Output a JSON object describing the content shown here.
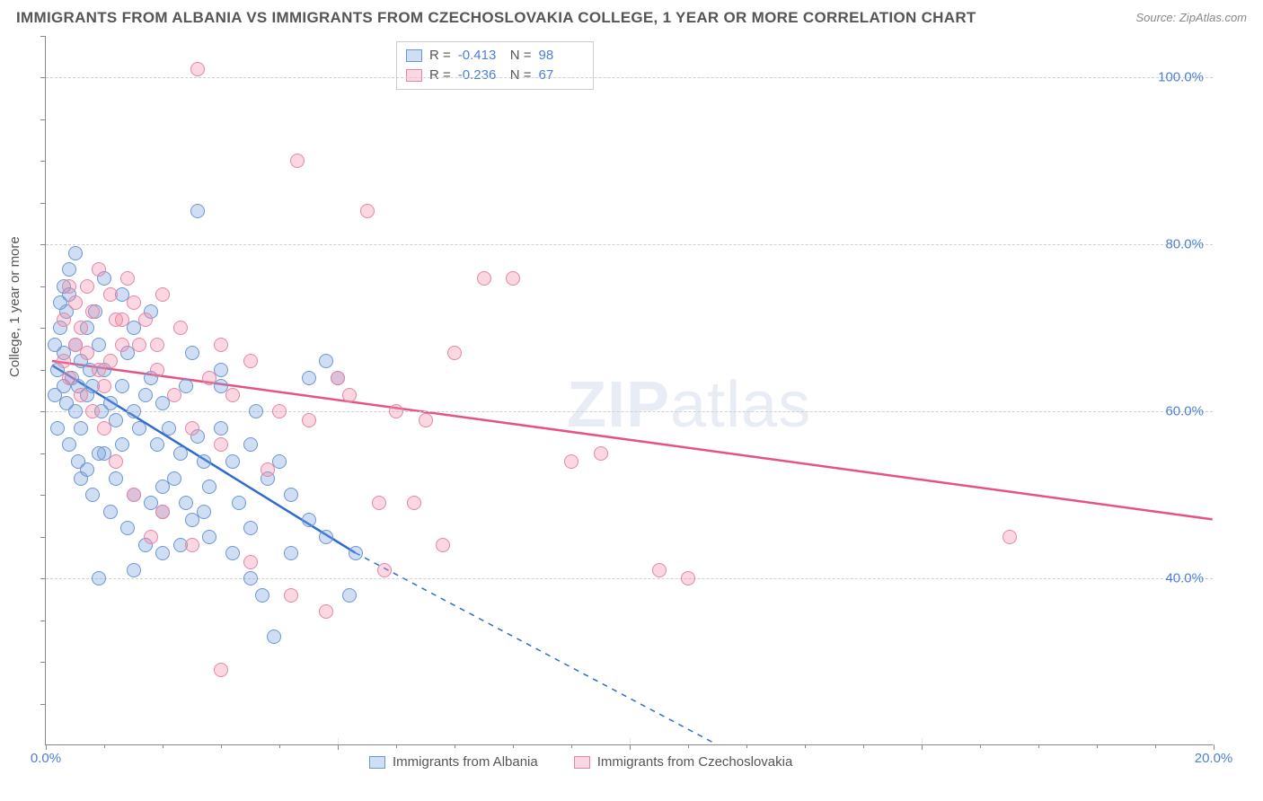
{
  "chart": {
    "type": "scatter",
    "title": "IMMIGRANTS FROM ALBANIA VS IMMIGRANTS FROM CZECHOSLOVAKIA COLLEGE, 1 YEAR OR MORE CORRELATION CHART",
    "source": "Source: ZipAtlas.com",
    "ylabel": "College, 1 year or more",
    "watermark": "ZIPatlas",
    "xlim": [
      0,
      20
    ],
    "ylim": [
      20,
      105
    ],
    "x_ticks": [
      0,
      5,
      10,
      15,
      20
    ],
    "x_tick_labels": [
      "0.0%",
      "",
      "",
      "",
      "20.0%"
    ],
    "y_ticks": [
      40,
      60,
      80,
      100
    ],
    "y_tick_labels": [
      "40.0%",
      "60.0%",
      "80.0%",
      "100.0%"
    ],
    "minor_y_ticks": [
      25,
      30,
      35,
      45,
      50,
      55,
      65,
      70,
      75,
      85,
      90,
      95,
      105
    ],
    "background_color": "#ffffff",
    "grid_color": "#d0d0d0",
    "axis_color": "#888888",
    "label_color": "#555555",
    "tick_label_color": "#4a7fd8",
    "title_fontsize": 17,
    "label_fontsize": 15,
    "tick_fontsize": 15,
    "marker_radius": 8,
    "line_width": 2.5
  },
  "series": [
    {
      "name": "Immigrants from Albania",
      "R": "-0.413",
      "N": "98",
      "fill_color": "rgba(120,160,220,0.35)",
      "stroke_color": "#6a96d6",
      "line_color": "#2d6bd0",
      "trend_solid": {
        "x1": 0.1,
        "y1": 65.5,
        "x2": 5.3,
        "y2": 43
      },
      "trend_dashed": {
        "x1": 5.3,
        "y1": 43,
        "x2": 11.5,
        "y2": 20
      },
      "points": [
        [
          0.2,
          65
        ],
        [
          0.3,
          63
        ],
        [
          0.3,
          67
        ],
        [
          0.25,
          70
        ],
        [
          0.35,
          72
        ],
        [
          0.4,
          74
        ],
        [
          0.15,
          62
        ],
        [
          0.5,
          68
        ],
        [
          0.45,
          64
        ],
        [
          0.6,
          66
        ],
        [
          0.5,
          60
        ],
        [
          0.7,
          62
        ],
        [
          0.6,
          58
        ],
        [
          0.8,
          63
        ],
        [
          0.7,
          70
        ],
        [
          0.9,
          68
        ],
        [
          0.85,
          72
        ],
        [
          1.0,
          65
        ],
        [
          1.1,
          61
        ],
        [
          1.2,
          59
        ],
        [
          1.0,
          55
        ],
        [
          1.3,
          63
        ],
        [
          1.4,
          67
        ],
        [
          1.5,
          60
        ],
        [
          1.3,
          56
        ],
        [
          1.6,
          58
        ],
        [
          1.7,
          62
        ],
        [
          1.8,
          64
        ],
        [
          1.5,
          70
        ],
        [
          2.0,
          61
        ],
        [
          1.9,
          56
        ],
        [
          2.1,
          58
        ],
        [
          2.2,
          52
        ],
        [
          2.3,
          55
        ],
        [
          2.4,
          63
        ],
        [
          2.0,
          48
        ],
        [
          2.6,
          57
        ],
        [
          2.7,
          54
        ],
        [
          2.5,
          47
        ],
        [
          3.0,
          58
        ],
        [
          2.8,
          51
        ],
        [
          3.2,
          54
        ],
        [
          3.3,
          49
        ],
        [
          3.5,
          56
        ],
        [
          3.6,
          60
        ],
        [
          3.0,
          63
        ],
        [
          3.8,
          52
        ],
        [
          4.0,
          54
        ],
        [
          3.5,
          46
        ],
        [
          4.2,
          50
        ],
        [
          0.3,
          75
        ],
        [
          0.4,
          77
        ],
        [
          0.25,
          73
        ],
        [
          0.5,
          79
        ],
        [
          1.0,
          76
        ],
        [
          1.3,
          74
        ],
        [
          1.8,
          72
        ],
        [
          2.6,
          84
        ],
        [
          2.5,
          67
        ],
        [
          3.0,
          65
        ],
        [
          4.5,
          64
        ],
        [
          4.8,
          66
        ],
        [
          5.0,
          64
        ],
        [
          0.6,
          52
        ],
        [
          0.8,
          50
        ],
        [
          1.1,
          48
        ],
        [
          1.4,
          46
        ],
        [
          1.7,
          44
        ],
        [
          0.9,
          40
        ],
        [
          1.5,
          41
        ],
        [
          2.0,
          43
        ],
        [
          2.3,
          44
        ],
        [
          2.8,
          45
        ],
        [
          3.2,
          43
        ],
        [
          3.5,
          40
        ],
        [
          3.7,
          38
        ],
        [
          3.9,
          33
        ],
        [
          4.2,
          43
        ],
        [
          4.5,
          47
        ],
        [
          4.8,
          45
        ],
        [
          5.2,
          38
        ],
        [
          5.3,
          43
        ],
        [
          0.2,
          58
        ],
        [
          0.4,
          56
        ],
        [
          0.55,
          54
        ],
        [
          0.7,
          53
        ],
        [
          0.9,
          55
        ],
        [
          1.2,
          52
        ],
        [
          1.5,
          50
        ],
        [
          1.8,
          49
        ],
        [
          2.0,
          51
        ],
        [
          2.4,
          49
        ],
        [
          2.7,
          48
        ],
        [
          0.15,
          68
        ],
        [
          0.35,
          61
        ],
        [
          0.55,
          63
        ],
        [
          0.75,
          65
        ],
        [
          0.95,
          60
        ]
      ]
    },
    {
      "name": "Immigrants from Czechoslovakia",
      "R": "-0.236",
      "N": "67",
      "fill_color": "rgba(240,140,170,0.35)",
      "stroke_color": "#e685a5",
      "line_color": "#e55383",
      "trend_solid": {
        "x1": 0.1,
        "y1": 66,
        "x2": 20,
        "y2": 47
      },
      "trend_dashed": null,
      "points": [
        [
          0.3,
          66
        ],
        [
          0.5,
          68
        ],
        [
          0.4,
          64
        ],
        [
          0.7,
          67
        ],
        [
          0.6,
          70
        ],
        [
          0.9,
          65
        ],
        [
          0.8,
          72
        ],
        [
          1.1,
          66
        ],
        [
          1.0,
          63
        ],
        [
          1.3,
          68
        ],
        [
          1.2,
          71
        ],
        [
          1.5,
          73
        ],
        [
          1.4,
          76
        ],
        [
          1.7,
          71
        ],
        [
          2.0,
          74
        ],
        [
          2.6,
          101
        ],
        [
          2.3,
          70
        ],
        [
          1.9,
          68
        ],
        [
          3.0,
          68
        ],
        [
          2.8,
          64
        ],
        [
          3.2,
          62
        ],
        [
          3.5,
          66
        ],
        [
          4.3,
          90
        ],
        [
          4.0,
          60
        ],
        [
          2.5,
          58
        ],
        [
          3.0,
          56
        ],
        [
          3.8,
          53
        ],
        [
          4.5,
          59
        ],
        [
          5.0,
          64
        ],
        [
          5.5,
          84
        ],
        [
          5.2,
          62
        ],
        [
          6.0,
          60
        ],
        [
          5.7,
          49
        ],
        [
          6.5,
          59
        ],
        [
          7.0,
          67
        ],
        [
          7.5,
          76
        ],
        [
          8.0,
          76
        ],
        [
          6.3,
          49
        ],
        [
          6.8,
          44
        ],
        [
          5.8,
          41
        ],
        [
          4.8,
          36
        ],
        [
          4.2,
          38
        ],
        [
          3.5,
          42
        ],
        [
          3.0,
          29
        ],
        [
          2.5,
          44
        ],
        [
          2.0,
          48
        ],
        [
          1.8,
          45
        ],
        [
          1.5,
          50
        ],
        [
          1.2,
          54
        ],
        [
          1.0,
          58
        ],
        [
          0.8,
          60
        ],
        [
          0.6,
          62
        ],
        [
          9.5,
          55
        ],
        [
          9.0,
          54
        ],
        [
          10.5,
          41
        ],
        [
          11.0,
          40
        ],
        [
          16.5,
          45
        ],
        [
          0.4,
          75
        ],
        [
          0.3,
          71
        ],
        [
          0.5,
          73
        ],
        [
          0.7,
          75
        ],
        [
          0.9,
          77
        ],
        [
          1.1,
          74
        ],
        [
          1.3,
          71
        ],
        [
          1.6,
          68
        ],
        [
          1.9,
          65
        ],
        [
          2.2,
          62
        ]
      ]
    }
  ],
  "legend_bottom": [
    {
      "label": "Immigrants from Albania",
      "fill": "rgba(120,160,220,0.35)",
      "stroke": "#6a96d6"
    },
    {
      "label": "Immigrants from Czechoslovakia",
      "fill": "rgba(240,140,170,0.35)",
      "stroke": "#e685a5"
    }
  ]
}
